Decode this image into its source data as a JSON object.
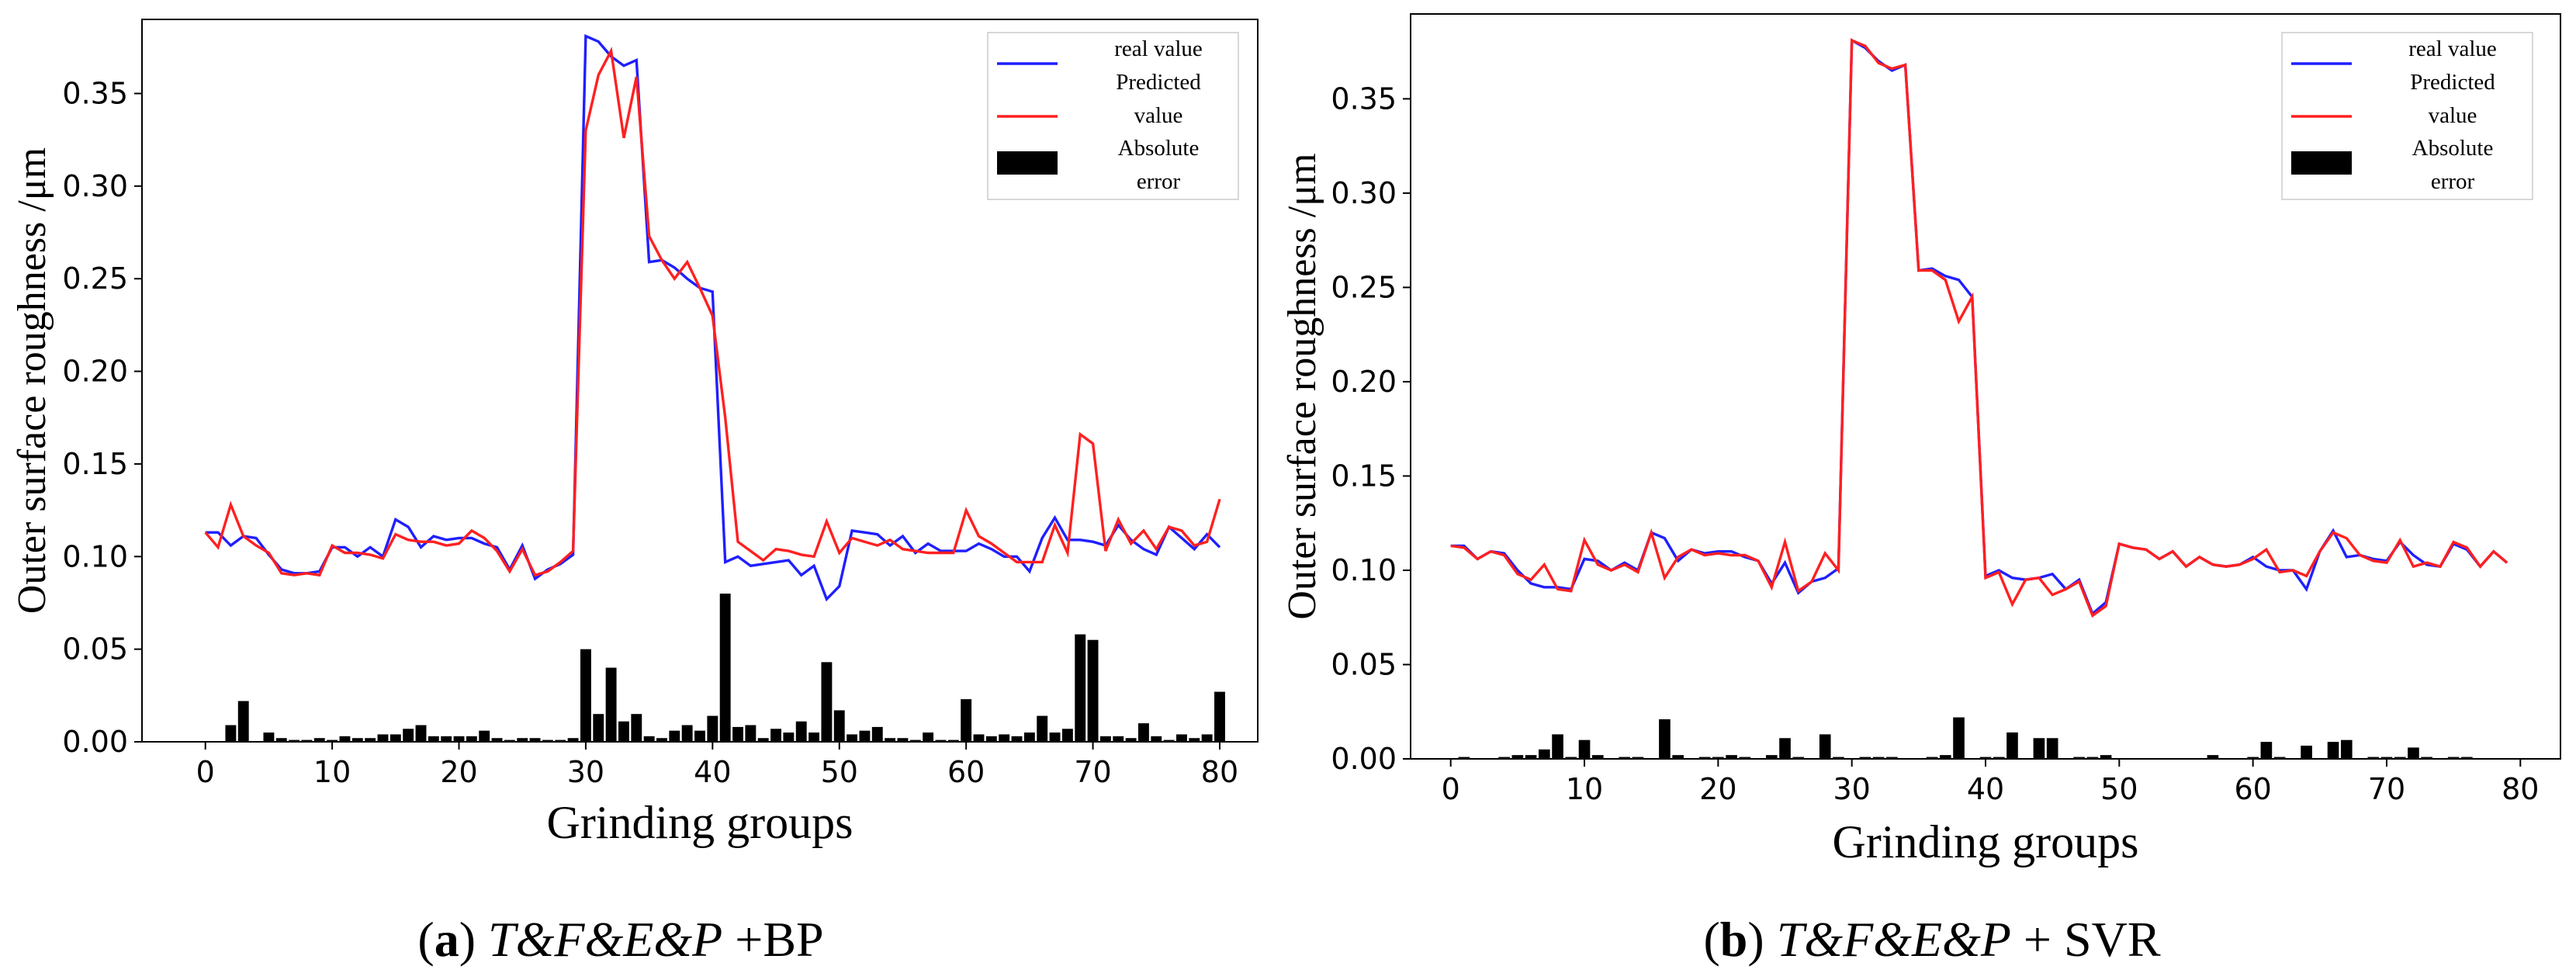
{
  "chart_data": [
    {
      "panel": "a",
      "type": "line",
      "caption": {
        "label": "a",
        "model": "T&F&E&P",
        "method": " +BP"
      },
      "xlabel": "Grinding groups",
      "ylabel": "Outer surface roughness /μm",
      "xlim": [
        -5,
        83
      ],
      "ylim": [
        0.0,
        0.39
      ],
      "xticks": [
        "0",
        "10",
        "20",
        "30",
        "40",
        "50",
        "60",
        "70",
        "80"
      ],
      "yticks": [
        "0.00",
        "0.05",
        "0.10",
        "0.15",
        "0.20",
        "0.25",
        "0.30",
        "0.35"
      ],
      "legend": {
        "position": "top-right",
        "entries": [
          "real value",
          "Predicted value",
          "Absolute error"
        ]
      },
      "colors": {
        "real": "#1f1fff",
        "predicted": "#ff2020",
        "error": "#000000"
      },
      "series": [
        {
          "name": "real value",
          "values": [
            0.113,
            0.113,
            0.106,
            0.111,
            0.11,
            0.101,
            0.093,
            0.091,
            0.091,
            0.092,
            0.105,
            0.105,
            0.1,
            0.105,
            0.1,
            0.12,
            0.116,
            0.105,
            0.111,
            0.109,
            0.11,
            0.11,
            0.107,
            0.105,
            0.093,
            0.106,
            0.088,
            0.093,
            0.096,
            0.101,
            0.381,
            0.378,
            0.37,
            0.365,
            0.368,
            0.259,
            0.26,
            0.256,
            0.25,
            0.245,
            0.243,
            0.097,
            0.1,
            0.095,
            0.096,
            0.097,
            0.098,
            0.09,
            0.095,
            0.077,
            0.084,
            0.114,
            0.113,
            0.112,
            0.106,
            0.111,
            0.102,
            0.107,
            0.103,
            0.103,
            0.103,
            0.107,
            0.104,
            0.1,
            0.1,
            0.092,
            0.11,
            0.121,
            0.109,
            0.109,
            0.108,
            0.106,
            0.117,
            0.109,
            0.104,
            0.101,
            0.116,
            0.11,
            0.104,
            0.112,
            0.105
          ]
        },
        {
          "name": "Predicted value",
          "values": [
            0.113,
            0.105,
            0.128,
            0.111,
            0.106,
            0.102,
            0.091,
            0.09,
            0.091,
            0.09,
            0.106,
            0.102,
            0.102,
            0.101,
            0.099,
            0.112,
            0.109,
            0.108,
            0.108,
            0.106,
            0.107,
            0.114,
            0.11,
            0.103,
            0.092,
            0.104,
            0.09,
            0.092,
            0.097,
            0.103,
            0.33,
            0.36,
            0.373,
            0.326,
            0.359,
            0.273,
            0.26,
            0.25,
            0.259,
            0.245,
            0.23,
            0.175,
            0.108,
            0.103,
            0.098,
            0.104,
            0.103,
            0.101,
            0.1,
            0.119,
            0.102,
            0.11,
            0.108,
            0.106,
            0.109,
            0.104,
            0.103,
            0.102,
            0.102,
            0.102,
            0.125,
            0.111,
            0.107,
            0.102,
            0.097,
            0.097,
            0.097,
            0.117,
            0.102,
            0.166,
            0.161,
            0.103,
            0.12,
            0.107,
            0.114,
            0.104,
            0.116,
            0.114,
            0.106,
            0.108,
            0.131
          ]
        },
        {
          "name": "Absolute error",
          "type": "bar",
          "values": [
            0,
            0,
            0.009,
            0.022,
            0,
            0.005,
            0.002,
            0.001,
            0.001,
            0.002,
            0.001,
            0.003,
            0.002,
            0.002,
            0.004,
            0.004,
            0.007,
            0.009,
            0.003,
            0.003,
            0.003,
            0.003,
            0.006,
            0.002,
            0.001,
            0.002,
            0.002,
            0.001,
            0.001,
            0.002,
            0.05,
            0.015,
            0.04,
            0.011,
            0.015,
            0.003,
            0.002,
            0.006,
            0.009,
            0.006,
            0.014,
            0.08,
            0.008,
            0.009,
            0.002,
            0.007,
            0.005,
            0.011,
            0.005,
            0.043,
            0.017,
            0.004,
            0.006,
            0.008,
            0.002,
            0.002,
            0.001,
            0.005,
            0.001,
            0.001,
            0.023,
            0.004,
            0.003,
            0.004,
            0.003,
            0.005,
            0.014,
            0.005,
            0.007,
            0.058,
            0.055,
            0.003,
            0.003,
            0.002,
            0.01,
            0.003,
            0.001,
            0.004,
            0.002,
            0.004,
            0.027
          ]
        }
      ]
    },
    {
      "panel": "b",
      "type": "line",
      "caption": {
        "label": "b",
        "model": "T&F&E&P",
        "method": " + SVR"
      },
      "xlabel": "Grinding groups",
      "ylabel": "Outer surface roughness /μm",
      "xlim": [
        -3,
        83
      ],
      "ylim": [
        0.0,
        0.395
      ],
      "xticks": [
        "0",
        "10",
        "20",
        "30",
        "40",
        "50",
        "60",
        "70",
        "80"
      ],
      "yticks": [
        "0.00",
        "0.05",
        "0.10",
        "0.15",
        "0.20",
        "0.25",
        "0.30",
        "0.35"
      ],
      "legend": {
        "position": "top-right",
        "entries": [
          "real value",
          "Predicted value",
          "Absolute error"
        ]
      },
      "colors": {
        "real": "#1f1fff",
        "predicted": "#ff2020",
        "error": "#000000"
      },
      "series": [
        {
          "name": "real value",
          "values": [
            0.113,
            0.113,
            0.106,
            0.11,
            0.109,
            0.1,
            0.093,
            0.091,
            0.091,
            0.09,
            0.106,
            0.105,
            0.1,
            0.104,
            0.1,
            0.12,
            0.117,
            0.105,
            0.111,
            0.109,
            0.11,
            0.11,
            0.107,
            0.105,
            0.093,
            0.104,
            0.088,
            0.094,
            0.096,
            0.101,
            0.381,
            0.377,
            0.37,
            0.365,
            0.368,
            0.259,
            0.26,
            0.256,
            0.254,
            0.245,
            0.097,
            0.1,
            0.096,
            0.095,
            0.096,
            0.098,
            0.09,
            0.095,
            0.077,
            0.083,
            0.114,
            0.112,
            0.111,
            0.106,
            0.11,
            0.102,
            0.107,
            0.103,
            0.102,
            0.103,
            0.107,
            0.102,
            0.1,
            0.1,
            0.09,
            0.11,
            0.121,
            0.107,
            0.108,
            0.106,
            0.105,
            0.115,
            0.108,
            0.103,
            0.102,
            0.114,
            0.111,
            0.102,
            0.11,
            0.104
          ]
        },
        {
          "name": "Predicted value",
          "values": [
            0.113,
            0.112,
            0.106,
            0.11,
            0.108,
            0.098,
            0.095,
            0.103,
            0.09,
            0.089,
            0.116,
            0.103,
            0.1,
            0.103,
            0.099,
            0.12,
            0.096,
            0.107,
            0.111,
            0.108,
            0.109,
            0.108,
            0.108,
            0.105,
            0.091,
            0.115,
            0.089,
            0.094,
            0.109,
            0.1,
            0.381,
            0.378,
            0.369,
            0.366,
            0.368,
            0.259,
            0.259,
            0.254,
            0.232,
            0.245,
            0.096,
            0.099,
            0.082,
            0.095,
            0.096,
            0.087,
            0.09,
            0.094,
            0.076,
            0.081,
            0.114,
            0.112,
            0.111,
            0.106,
            0.11,
            0.102,
            0.107,
            0.103,
            0.102,
            0.103,
            0.106,
            0.111,
            0.099,
            0.1,
            0.097,
            0.11,
            0.12,
            0.117,
            0.108,
            0.105,
            0.104,
            0.116,
            0.102,
            0.104,
            0.102,
            0.115,
            0.112,
            0.102,
            0.11,
            0.104
          ]
        },
        {
          "name": "Absolute error",
          "type": "bar",
          "values": [
            0,
            0.001,
            0,
            0,
            0.001,
            0.002,
            0.002,
            0.005,
            0.013,
            0.001,
            0.01,
            0.002,
            0,
            0.001,
            0.001,
            0,
            0.021,
            0.002,
            0,
            0.001,
            0.001,
            0.002,
            0.001,
            0,
            0.002,
            0.011,
            0.001,
            0,
            0.013,
            0.001,
            0,
            0.001,
            0.001,
            0.001,
            0,
            0,
            0.001,
            0.002,
            0.022,
            0,
            0.001,
            0.001,
            0.014,
            0,
            0.011,
            0.011,
            0,
            0.001,
            0.001,
            0.002,
            0,
            0,
            0,
            0,
            0,
            0,
            0,
            0.002,
            0,
            0,
            0.001,
            0.009,
            0.001,
            0,
            0.007,
            0,
            0.009,
            0.01,
            0,
            0.001,
            0.001,
            0.001,
            0.006,
            0.001,
            0,
            0.001,
            0.001,
            0,
            0,
            0
          ]
        }
      ]
    }
  ]
}
